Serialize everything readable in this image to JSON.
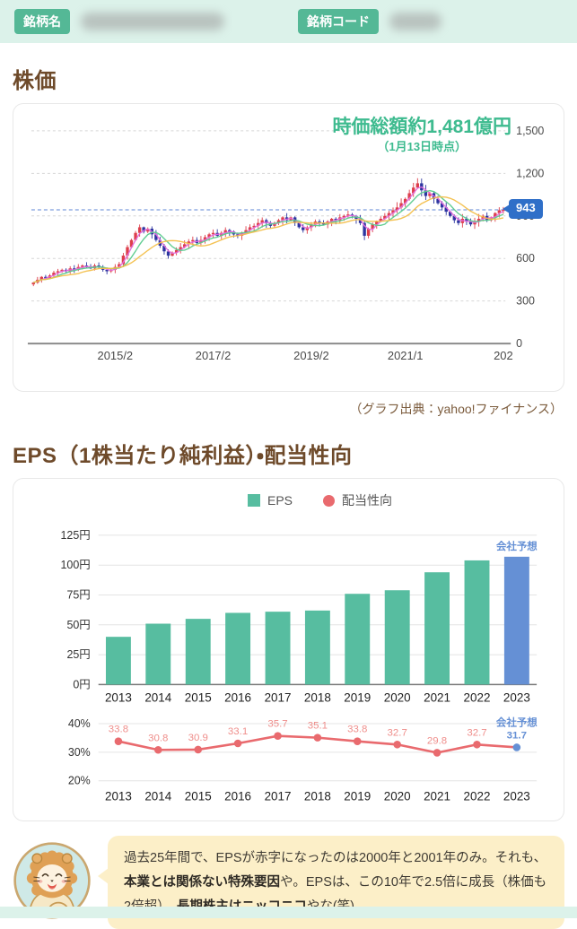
{
  "header": {
    "name_label": "銘柄名",
    "code_label": "銘柄コード",
    "badge_color": "#54b896",
    "strip_color": "#dcf2ea"
  },
  "price_section": {
    "title": "株価",
    "source": "（グラフ出典：yahoo!ファイナンス）"
  },
  "eps_section": {
    "title": "EPS（1株当たり純利益）・配当性向"
  },
  "comment": {
    "segments": [
      {
        "text": "過去25年間で、EPSが赤字になったのは2000年と2001年のみ。それも、",
        "bold": false
      },
      {
        "text": "本業とは関係ない特殊要因",
        "bold": true
      },
      {
        "text": "や。EPSは、この10年で2.5倍に成長（株価も2倍超）。",
        "bold": false
      },
      {
        "text": "長期株主はニッコニコ",
        "bold": true
      },
      {
        "text": "やな(笑)",
        "bold": false
      }
    ]
  },
  "chart_data": [
    {
      "id": "stock-price",
      "type": "candlestick",
      "annotation": {
        "line1": "時価総額約1,481億円",
        "line2": "（1月13日時点）"
      },
      "current_price": 943,
      "current_price_label": "943",
      "current_price_line_color": "#5c85d6",
      "ylim": [
        0,
        1550
      ],
      "y_ticks": [
        {
          "value": 0,
          "label": "0"
        },
        {
          "value": 300,
          "label": "300"
        },
        {
          "value": 600,
          "label": "600"
        },
        {
          "value": 900,
          "label": "900"
        },
        {
          "value": 1200,
          "label": "1,200"
        },
        {
          "value": 1500,
          "label": "1,500"
        }
      ],
      "x_ticks": [
        {
          "label": "2015/2",
          "month": 20
        },
        {
          "label": "2017/2",
          "month": 44
        },
        {
          "label": "2019/2",
          "month": 68
        },
        {
          "label": "2021/1",
          "month": 91
        },
        {
          "label": "202",
          "month": 115
        }
      ],
      "monthly_closes": [
        430,
        450,
        470,
        460,
        480,
        500,
        510,
        520,
        510,
        530,
        520,
        540,
        550,
        540,
        530,
        550,
        540,
        520,
        510,
        520,
        540,
        560,
        620,
        680,
        730,
        780,
        820,
        790,
        810,
        770,
        730,
        690,
        650,
        620,
        640,
        660,
        680,
        700,
        720,
        730,
        710,
        730,
        750,
        770,
        780,
        760,
        780,
        800,
        790,
        770,
        760,
        780,
        800,
        820,
        830,
        850,
        870,
        850,
        830,
        850,
        870,
        890,
        870,
        890,
        850,
        820,
        800,
        820,
        840,
        860,
        850,
        840,
        860,
        880,
        870,
        890,
        900,
        910,
        900,
        880,
        850,
        760,
        810,
        840,
        860,
        880,
        900,
        920,
        940,
        960,
        990,
        1020,
        1060,
        1100,
        1130,
        1080,
        1040,
        1060,
        1020,
        990,
        960,
        930,
        900,
        870,
        850,
        880,
        860,
        840,
        860,
        880,
        900,
        870,
        890,
        920,
        940,
        943
      ],
      "ma_periods": [
        3,
        6,
        12
      ],
      "ma_colors": [
        "#e36bdc",
        "#5ccb8e",
        "#f3bf4a"
      ],
      "up_color": "#dd3e4b",
      "down_color": "#2c35a0",
      "grid_color": "#d6d6d6"
    },
    {
      "id": "eps",
      "type": "bar",
      "categories": [
        "2013",
        "2014",
        "2015",
        "2016",
        "2017",
        "2018",
        "2019",
        "2020",
        "2021",
        "2022",
        "2023"
      ],
      "values": [
        40,
        51,
        55,
        60,
        61,
        62,
        76,
        79,
        94,
        104,
        107
      ],
      "y_ticks": [
        0,
        25,
        50,
        75,
        100,
        125
      ],
      "y_unit": "円",
      "ylim": [
        0,
        130
      ],
      "bar_color": "#57bda0",
      "forecast_index": 10,
      "forecast_color": "#6590d5",
      "forecast_label": "会社予想",
      "legend": [
        {
          "label": "EPS",
          "color": "#57bda0",
          "shape": "square"
        },
        {
          "label": "配当性向",
          "color": "#e96a6e",
          "shape": "circle"
        }
      ]
    },
    {
      "id": "payout-ratio",
      "type": "line",
      "categories": [
        "2013",
        "2014",
        "2015",
        "2016",
        "2017",
        "2018",
        "2019",
        "2020",
        "2021",
        "2022",
        "2023"
      ],
      "values": [
        33.8,
        30.8,
        30.9,
        33.1,
        35.7,
        35.1,
        33.8,
        32.7,
        29.8,
        32.7,
        31.7
      ],
      "y_ticks": [
        20,
        30,
        40
      ],
      "y_unit": "%",
      "ylim": [
        17,
        43
      ],
      "line_color": "#e96a6e",
      "label_color": "#ef8e8b",
      "forecast_index": 10,
      "forecast_color": "#6590d5",
      "forecast_label": "会社予想"
    }
  ]
}
